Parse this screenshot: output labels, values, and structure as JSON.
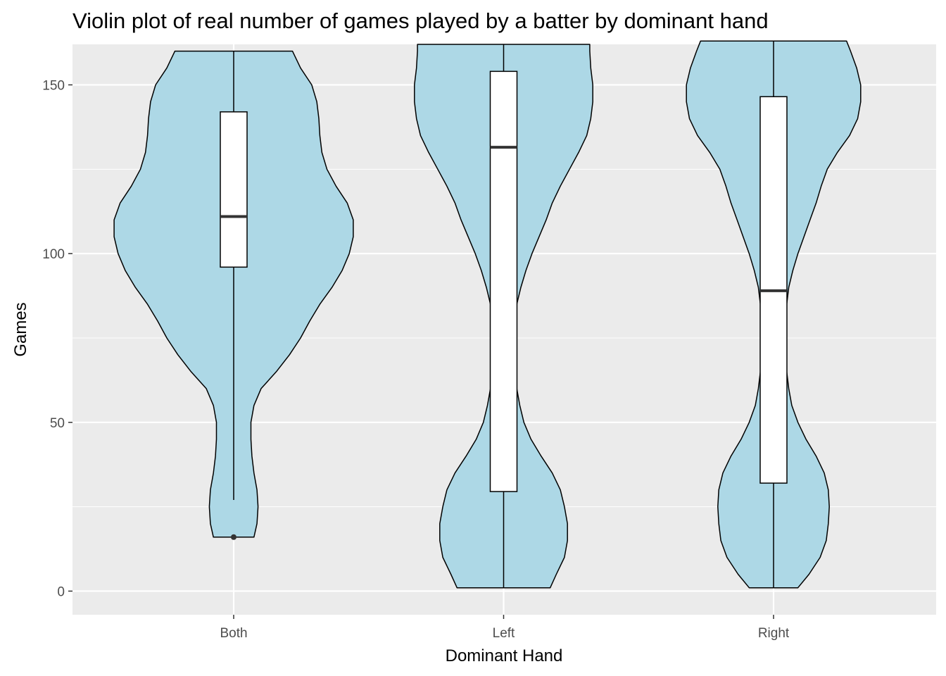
{
  "chart_data": {
    "type": "violin",
    "title": "Violin plot of real number of games played by a batter by dominant hand",
    "xlabel": "Dominant Hand",
    "ylabel": "Games",
    "categories": [
      "Both",
      "Left",
      "Right"
    ],
    "y_ticks": [
      0,
      50,
      100,
      150
    ],
    "ylim": [
      -7,
      162
    ],
    "grid": true,
    "colors": {
      "panel": "#ebebeb",
      "grid": "#ffffff",
      "violin_fill": "#add8e6",
      "outline": "#000000",
      "box_fill": "#ffffff",
      "median": "#333333"
    },
    "violins": [
      {
        "category": "Both",
        "min": 16,
        "max": 160,
        "density": [
          [
            16,
            0.2
          ],
          [
            20,
            0.23
          ],
          [
            25,
            0.24
          ],
          [
            30,
            0.23
          ],
          [
            35,
            0.2
          ],
          [
            40,
            0.18
          ],
          [
            45,
            0.17
          ],
          [
            50,
            0.17
          ],
          [
            55,
            0.2
          ],
          [
            60,
            0.27
          ],
          [
            65,
            0.42
          ],
          [
            70,
            0.55
          ],
          [
            75,
            0.66
          ],
          [
            80,
            0.75
          ],
          [
            85,
            0.85
          ],
          [
            90,
            0.97
          ],
          [
            95,
            1.07
          ],
          [
            100,
            1.14
          ],
          [
            105,
            1.18
          ],
          [
            110,
            1.18
          ],
          [
            115,
            1.12
          ],
          [
            120,
            1.01
          ],
          [
            125,
            0.92
          ],
          [
            130,
            0.87
          ],
          [
            135,
            0.85
          ],
          [
            140,
            0.84
          ],
          [
            145,
            0.82
          ],
          [
            150,
            0.77
          ],
          [
            155,
            0.66
          ],
          [
            160,
            0.58
          ]
        ],
        "box": {
          "q1": 96,
          "median": 111,
          "q3": 142,
          "whisker_low": 27,
          "whisker_high": 160
        },
        "outliers": [
          16
        ]
      },
      {
        "category": "Left",
        "min": 1,
        "max": 162,
        "density": [
          [
            1,
            0.46
          ],
          [
            5,
            0.52
          ],
          [
            10,
            0.6
          ],
          [
            15,
            0.63
          ],
          [
            20,
            0.63
          ],
          [
            25,
            0.6
          ],
          [
            30,
            0.56
          ],
          [
            35,
            0.48
          ],
          [
            40,
            0.37
          ],
          [
            45,
            0.27
          ],
          [
            50,
            0.2
          ],
          [
            55,
            0.16
          ],
          [
            60,
            0.13
          ],
          [
            65,
            0.11
          ],
          [
            70,
            0.11
          ],
          [
            75,
            0.11
          ],
          [
            80,
            0.11
          ],
          [
            85,
            0.13
          ],
          [
            90,
            0.17
          ],
          [
            95,
            0.22
          ],
          [
            100,
            0.28
          ],
          [
            105,
            0.35
          ],
          [
            110,
            0.42
          ],
          [
            115,
            0.48
          ],
          [
            120,
            0.56
          ],
          [
            125,
            0.65
          ],
          [
            130,
            0.74
          ],
          [
            135,
            0.82
          ],
          [
            140,
            0.86
          ],
          [
            145,
            0.88
          ],
          [
            150,
            0.88
          ],
          [
            155,
            0.86
          ],
          [
            160,
            0.85
          ],
          [
            162,
            0.85
          ]
        ],
        "box": {
          "q1": 29.5,
          "median": 131.5,
          "q3": 154,
          "whisker_low": 1,
          "whisker_high": 162
        },
        "outliers": []
      },
      {
        "category": "Right",
        "min": 1,
        "max": 163,
        "density": [
          [
            1,
            0.24
          ],
          [
            5,
            0.35
          ],
          [
            10,
            0.46
          ],
          [
            15,
            0.52
          ],
          [
            20,
            0.54
          ],
          [
            25,
            0.55
          ],
          [
            30,
            0.54
          ],
          [
            35,
            0.5
          ],
          [
            40,
            0.42
          ],
          [
            45,
            0.32
          ],
          [
            50,
            0.24
          ],
          [
            55,
            0.18
          ],
          [
            60,
            0.15
          ],
          [
            65,
            0.13
          ],
          [
            70,
            0.12
          ],
          [
            75,
            0.12
          ],
          [
            80,
            0.12
          ],
          [
            85,
            0.13
          ],
          [
            90,
            0.15
          ],
          [
            95,
            0.19
          ],
          [
            100,
            0.24
          ],
          [
            105,
            0.3
          ],
          [
            110,
            0.36
          ],
          [
            115,
            0.42
          ],
          [
            120,
            0.47
          ],
          [
            125,
            0.53
          ],
          [
            130,
            0.63
          ],
          [
            135,
            0.75
          ],
          [
            140,
            0.83
          ],
          [
            145,
            0.86
          ],
          [
            150,
            0.86
          ],
          [
            155,
            0.82
          ],
          [
            160,
            0.76
          ],
          [
            163,
            0.72
          ]
        ],
        "box": {
          "q1": 32,
          "median": 89,
          "q3": 146.5,
          "whisker_low": 1,
          "whisker_high": 163
        },
        "outliers": []
      }
    ]
  }
}
